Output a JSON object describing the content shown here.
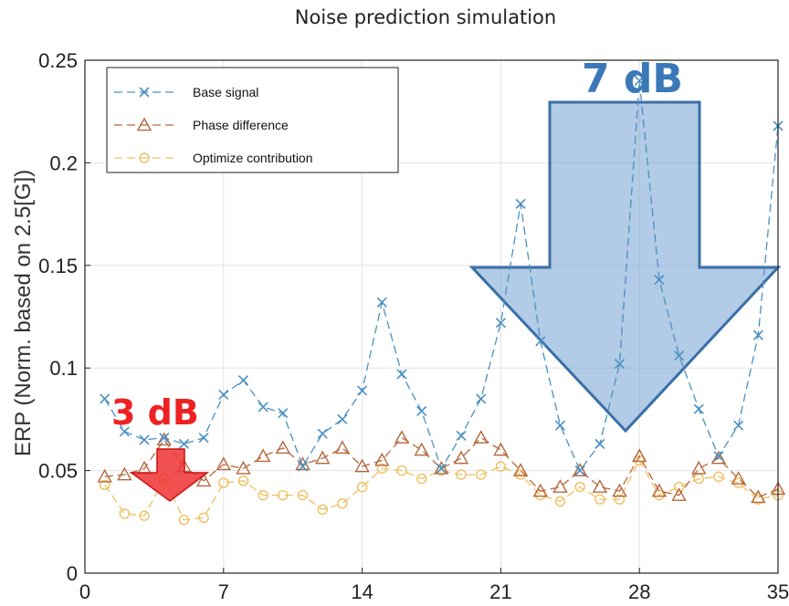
{
  "chart_data": {
    "type": "line",
    "title": "Noise prediction simulation",
    "ylabel": "ERP (Norm. based on 2.5[G])",
    "xlabel": "",
    "xlim": [
      0,
      35
    ],
    "ylim": [
      0,
      0.25
    ],
    "x_ticks": [
      "0",
      "7",
      "14",
      "21",
      "28",
      "35"
    ],
    "y_ticks": [
      "0",
      "0.05",
      "0.1",
      "0.15",
      "0.2",
      "0.25"
    ],
    "grid": true,
    "legend_position": "top-left",
    "x": [
      1,
      2,
      3,
      4,
      5,
      6,
      7,
      8,
      9,
      10,
      11,
      12,
      13,
      14,
      15,
      16,
      17,
      18,
      19,
      20,
      21,
      22,
      23,
      24,
      25,
      26,
      27,
      28,
      29,
      30,
      31,
      32,
      33,
      34,
      35
    ],
    "series": [
      {
        "name": "Base signal",
        "marker": "x",
        "color": "#4a90c2",
        "values": [
          0.085,
          0.069,
          0.065,
          0.066,
          0.063,
          0.066,
          0.087,
          0.094,
          0.081,
          0.078,
          0.052,
          0.068,
          0.075,
          0.089,
          0.132,
          0.097,
          0.079,
          0.051,
          0.067,
          0.085,
          0.122,
          0.18,
          0.113,
          0.072,
          0.05,
          0.063,
          0.102,
          0.24,
          0.143,
          0.106,
          0.08,
          0.057,
          0.072,
          0.116,
          0.218
        ]
      },
      {
        "name": "Phase difference",
        "marker": "triangle",
        "color": "#b5673d",
        "values": [
          0.047,
          0.048,
          0.051,
          0.065,
          0.052,
          0.045,
          0.053,
          0.051,
          0.057,
          0.061,
          0.053,
          0.056,
          0.061,
          0.052,
          0.055,
          0.066,
          0.06,
          0.051,
          0.056,
          0.066,
          0.06,
          0.05,
          0.04,
          0.042,
          0.05,
          0.042,
          0.04,
          0.057,
          0.04,
          0.038,
          0.051,
          0.056,
          0.046,
          0.037,
          0.041
        ]
      },
      {
        "name": "Optimize contribution",
        "marker": "circle",
        "color": "#f0c060",
        "values": [
          0.043,
          0.029,
          0.028,
          0.046,
          0.026,
          0.027,
          0.044,
          0.045,
          0.038,
          0.038,
          0.038,
          0.031,
          0.034,
          0.042,
          0.051,
          0.05,
          0.046,
          0.05,
          0.048,
          0.048,
          0.052,
          0.048,
          0.038,
          0.035,
          0.042,
          0.036,
          0.036,
          0.055,
          0.038,
          0.042,
          0.046,
          0.047,
          0.044,
          0.036,
          0.038
        ]
      }
    ],
    "annotations": [
      {
        "text": "3 dB",
        "color": "#ee2222"
      },
      {
        "text": "7 dB",
        "color": "#3a78b8"
      }
    ]
  }
}
